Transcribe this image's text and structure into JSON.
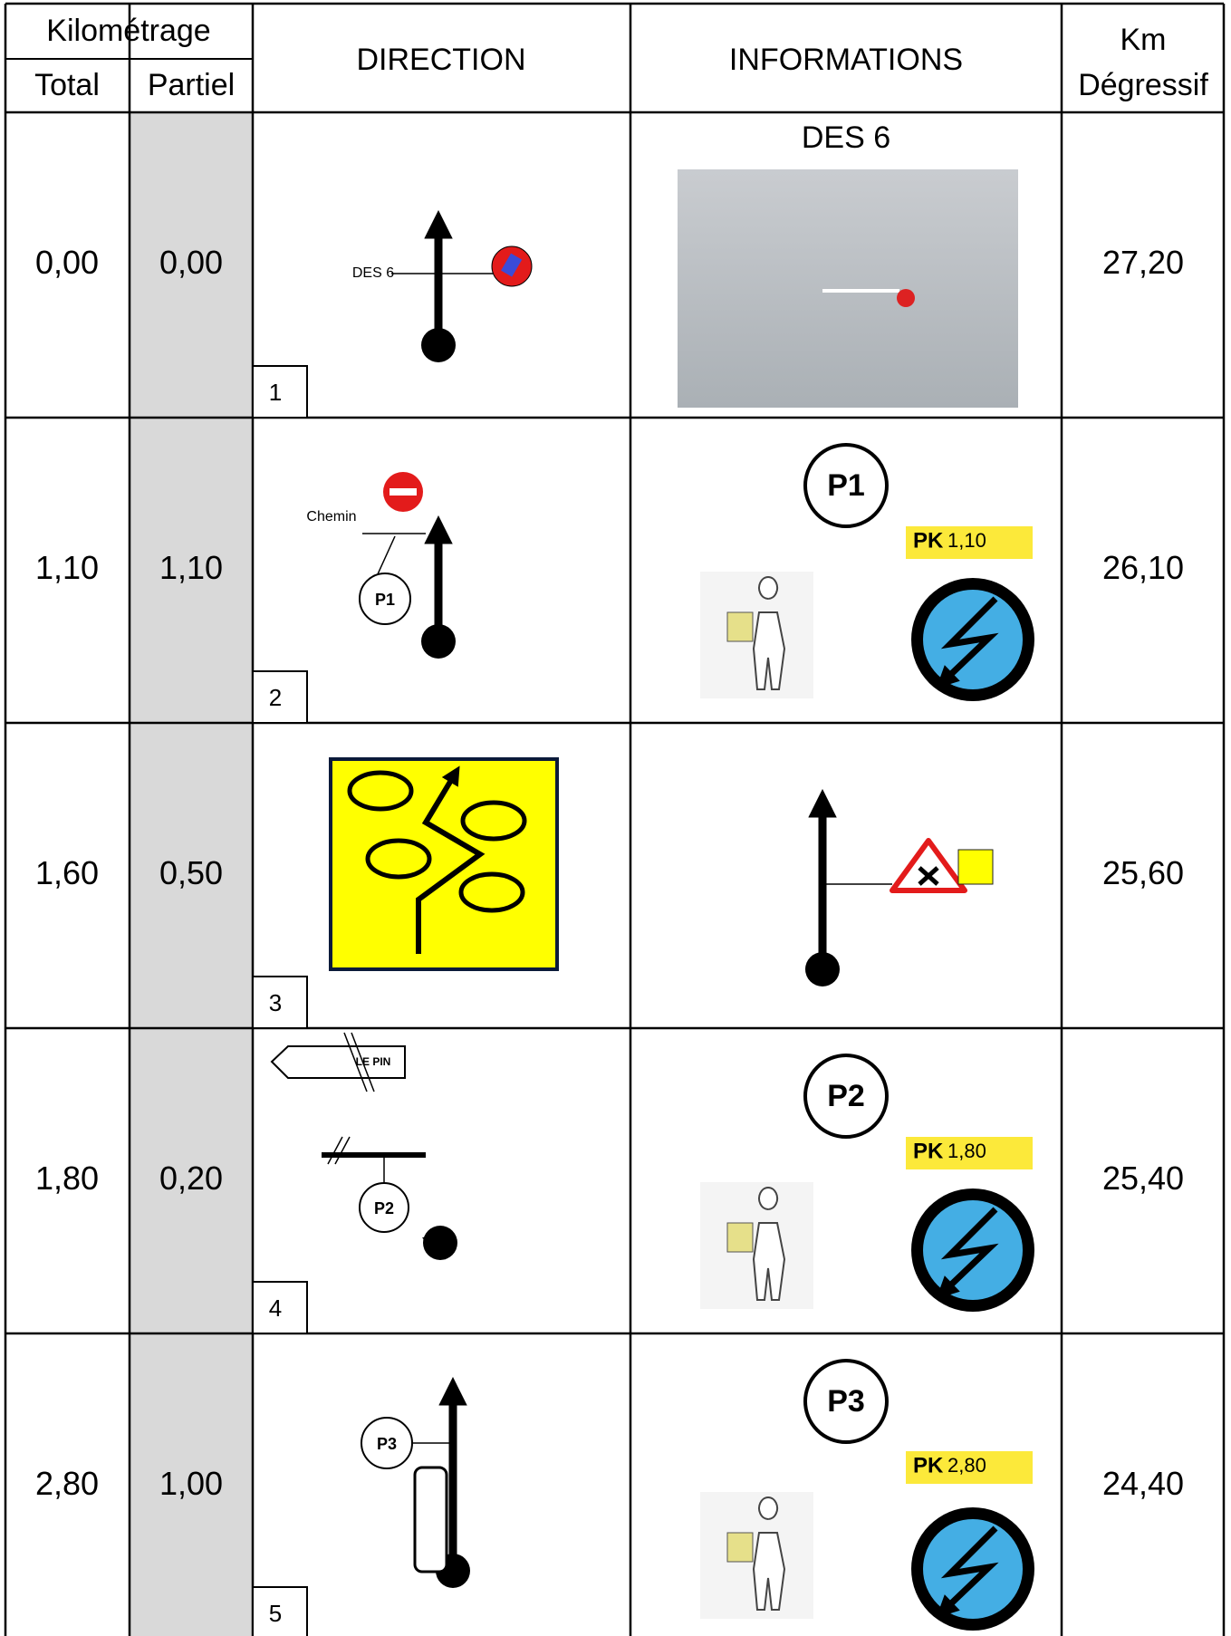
{
  "header": {
    "kilometrage": "Kilométrage",
    "total": "Total",
    "partiel": "Partiel",
    "direction": "DIRECTION",
    "informations": "INFORMATIONS",
    "km_degressif": [
      "Km",
      "Dégressif"
    ]
  },
  "rows": [
    {
      "total": "0,00",
      "partiel": "0,00",
      "step": "1",
      "direction_labels": [
        "DES 6"
      ],
      "info_title": "DES 6",
      "degressif": "27,20"
    },
    {
      "total": "1,10",
      "partiel": "1,10",
      "step": "2",
      "direction_labels": [
        "Chemin",
        "P1"
      ],
      "info_title": "P1",
      "pk": [
        "PK",
        "1,10"
      ],
      "degressif": "26,10"
    },
    {
      "total": "1,60",
      "partiel": "0,50",
      "step": "3",
      "degressif": "25,60"
    },
    {
      "total": "1,80",
      "partiel": "0,20",
      "step": "4",
      "direction_labels": [
        "LE PIN",
        "P2"
      ],
      "info_title": "P2",
      "pk": [
        "PK",
        "1,80"
      ],
      "degressif": "25,40"
    },
    {
      "total": "2,80",
      "partiel": "1,00",
      "step": "5",
      "direction_labels": [
        "P3"
      ],
      "info_title": "P3",
      "pk": [
        "PK",
        "2,80"
      ],
      "degressif": "24,40"
    }
  ]
}
